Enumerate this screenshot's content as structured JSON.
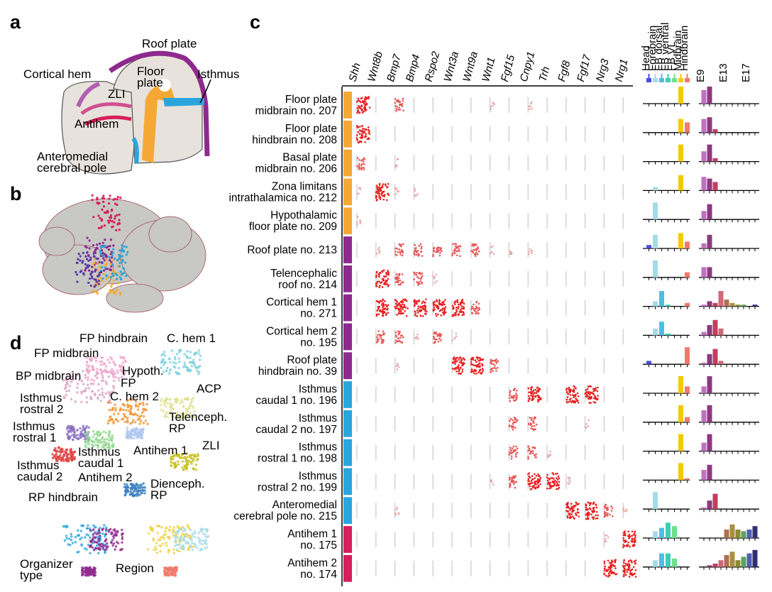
{
  "panel_labels": [
    "a",
    "b",
    "c",
    "d"
  ],
  "panel_a": {
    "labels": [
      [
        "Roof plate"
      ],
      [
        "Cortical hem"
      ],
      [
        "Floor",
        "plate"
      ],
      [
        "Isthmus"
      ],
      [
        "ZLI"
      ],
      [
        "Antihem"
      ],
      [
        "Anteromedial",
        "cerebral pole"
      ]
    ]
  },
  "panel_d": {
    "labels": [
      [
        "FP hindbrain"
      ],
      [
        "C. hem 1"
      ],
      [
        "FP midbrain"
      ],
      [
        "BP midbrain"
      ],
      [
        "Hypoth."
      ],
      [
        "FP"
      ],
      [
        "Isthmus",
        "rostral 2"
      ],
      [
        "C. hem 2"
      ],
      [
        "ACP"
      ],
      [
        "Telenceph.",
        "RP"
      ],
      [
        "Isthmus",
        "rostral 1"
      ],
      [
        "ZLI"
      ],
      [
        "Antihem 1"
      ],
      [
        "Isthmus",
        "caudal 1"
      ],
      [
        "Isthmus",
        "caudal 2"
      ],
      [
        "Antihem 2"
      ],
      [
        "Dienceph.",
        "RP"
      ],
      [
        "RP hindbrain"
      ],
      [
        "Organizer",
        "type"
      ],
      [
        "Region"
      ]
    ]
  },
  "panel_c": {
    "genes": [
      "Shh",
      "Wnt8b",
      "Bmp7",
      "Bmp4",
      "Rspo2",
      "Wnt3a",
      "Wnt9a",
      "Wnt1",
      "Fgf15",
      "Cnpy1",
      "Trh",
      "Fgf8",
      "Fgf17",
      "Nrg3",
      "Nrg1"
    ],
    "regions": [
      {
        "name": "Head",
        "color": "#4a4ae8"
      },
      {
        "name": "Forebrain",
        "color": "#a6dbe6"
      },
      {
        "name": "FB dorsal",
        "color": "#4cbfe0"
      },
      {
        "name": "FB ventral",
        "color": "#3ccfb4"
      },
      {
        "name": "FB VL",
        "color": "#6ee08a"
      },
      {
        "name": "Midbrain",
        "color": "#f5c800"
      },
      {
        "name": "Hindbrain",
        "color": "#f07a6a"
      }
    ],
    "ages": [
      "E9",
      null,
      null,
      null,
      "E13",
      null,
      null,
      null,
      "E17",
      null
    ],
    "age_colors": [
      "#c070c0",
      "#8b3a80",
      "#c04060",
      "#d06878",
      "#b07050",
      "#a89040",
      "#8a8a30",
      "#60a060",
      "#5060b0",
      "#303078"
    ],
    "rows": [
      {
        "label": [
          "Floor plate",
          "midbrain no. 207"
        ],
        "group_color": "#f5a833",
        "expression": [
          3,
          0,
          2,
          0,
          0,
          0,
          0,
          1,
          0,
          1,
          0,
          0,
          0,
          0,
          0
        ],
        "region": [
          0,
          0,
          0,
          0,
          0,
          1,
          0
        ],
        "age": [
          0.8,
          1,
          0,
          0,
          0,
          0,
          0,
          0,
          0,
          0
        ]
      },
      {
        "label": [
          "Floor plate",
          "hindbrain no. 208"
        ],
        "group_color": "#f5a833",
        "expression": [
          3,
          0,
          0,
          0,
          0,
          0,
          0,
          0,
          0,
          0,
          0,
          0,
          0,
          0,
          0
        ],
        "region": [
          0,
          0,
          0,
          0,
          0,
          0.8,
          0.6
        ],
        "age": [
          0.8,
          0.9,
          0.2,
          0,
          0,
          0,
          0,
          0,
          0,
          0
        ]
      },
      {
        "label": [
          "Basal plate",
          "midbrain no. 206"
        ],
        "group_color": "#f5a833",
        "expression": [
          2,
          0,
          1,
          0,
          0,
          0,
          0,
          0,
          0,
          0,
          0,
          0,
          0,
          0,
          0
        ],
        "region": [
          0,
          0,
          0,
          0,
          0,
          1,
          0
        ],
        "age": [
          0.6,
          1,
          0.2,
          0,
          0,
          0,
          0,
          0,
          0,
          0
        ]
      },
      {
        "label": [
          "Zona limitans",
          "intrathalamica no. 212"
        ],
        "group_color": "#f5a833",
        "expression": [
          1,
          3,
          1,
          1,
          0,
          0,
          0,
          0,
          0,
          0,
          0,
          0,
          0,
          0,
          0
        ],
        "region": [
          0,
          0.2,
          0,
          0,
          0,
          0.9,
          0
        ],
        "age": [
          0.8,
          0.7,
          0.5,
          0,
          0,
          0,
          0,
          0,
          0,
          0
        ]
      },
      {
        "label": [
          "Hypothalamic",
          "floor plate no. 209"
        ],
        "group_color": "#f5a833",
        "expression": [
          1,
          0,
          0,
          0,
          0,
          0,
          0,
          0,
          0,
          0,
          0,
          0,
          0,
          0,
          0
        ],
        "region": [
          0,
          1,
          0,
          0,
          0,
          0,
          0
        ],
        "age": [
          0.5,
          0.9,
          0,
          0,
          0,
          0,
          0,
          0,
          0,
          0
        ]
      },
      {
        "label": [
          "Roof plate no. 213"
        ],
        "group_color": "#8e2a8e",
        "expression": [
          0,
          1,
          2,
          2,
          2,
          2,
          2,
          1,
          1,
          1,
          0,
          0,
          0,
          0,
          0
        ],
        "region": [
          0.2,
          0.8,
          0,
          0,
          0,
          0.9,
          0.4
        ],
        "age": [
          0.3,
          0.8,
          0,
          0,
          0,
          0,
          0,
          0,
          0,
          0
        ]
      },
      {
        "label": [
          "Telencephalic",
          "roof no. 214"
        ],
        "group_color": "#8e2a8e",
        "expression": [
          0,
          3,
          2,
          2,
          1,
          0,
          0,
          0,
          0,
          0,
          0,
          0,
          0,
          0,
          0
        ],
        "region": [
          0,
          1,
          0,
          0,
          0,
          0,
          0.3
        ],
        "age": [
          0.6,
          0.6,
          0,
          0,
          0,
          0,
          0,
          0,
          0,
          0
        ]
      },
      {
        "label": [
          "Cortical hem 1",
          "no. 271"
        ],
        "group_color": "#8e2a8e",
        "expression": [
          0,
          3,
          3,
          3,
          3,
          3,
          2,
          0,
          0,
          0,
          0,
          0,
          0,
          0,
          0
        ],
        "region": [
          0,
          0.3,
          0.9,
          0.1,
          0,
          0,
          0.2
        ],
        "age": [
          0.1,
          0.3,
          0.2,
          0.9,
          0.4,
          0.2,
          0.1,
          0.1,
          0,
          0.1
        ]
      },
      {
        "label": [
          "Cortical hem 2",
          "no. 195"
        ],
        "group_color": "#8e2a8e",
        "expression": [
          0,
          2,
          2,
          1,
          2,
          1,
          0,
          0,
          0,
          0,
          0,
          0,
          0,
          0,
          0
        ],
        "region": [
          0,
          0.4,
          0.8,
          0.1,
          0,
          0,
          0
        ],
        "age": [
          0.2,
          0.6,
          0.9,
          0.4,
          0,
          0,
          0,
          0,
          0,
          0
        ]
      },
      {
        "label": [
          "Roof plate",
          "hindbrain no. 39"
        ],
        "group_color": "#8e2a8e",
        "expression": [
          0,
          0,
          1,
          0,
          0,
          3,
          3,
          2,
          0,
          0,
          0,
          0,
          0,
          0,
          0
        ],
        "region": [
          0.2,
          0,
          0,
          0,
          0,
          0,
          1
        ],
        "age": [
          0.1,
          0.6,
          0.9,
          0.2,
          0,
          0,
          0,
          0,
          0,
          0
        ]
      },
      {
        "label": [
          "Isthmus",
          "caudal 1 no. 196"
        ],
        "group_color": "#2aa6de",
        "expression": [
          0,
          0,
          0,
          0,
          0,
          0,
          0,
          0,
          2,
          3,
          0,
          3,
          3,
          0,
          0
        ],
        "region": [
          0,
          0,
          0,
          0,
          0,
          1,
          0.4
        ],
        "age": [
          0.4,
          1,
          0,
          0,
          0,
          0,
          0,
          0,
          0,
          0
        ]
      },
      {
        "label": [
          "Isthmus",
          "caudal 2 no. 197"
        ],
        "group_color": "#2aa6de",
        "expression": [
          0,
          0,
          0,
          0,
          0,
          0,
          0,
          0,
          2,
          2,
          0,
          0,
          1,
          0,
          0
        ],
        "region": [
          0,
          0,
          0,
          0,
          0,
          1,
          0.3
        ],
        "age": [
          0.7,
          1,
          0,
          0,
          0,
          0,
          0,
          0,
          0,
          0
        ]
      },
      {
        "label": [
          "Isthmus",
          "rostral 1 no. 198"
        ],
        "group_color": "#2aa6de",
        "expression": [
          0,
          0,
          0,
          0,
          0,
          0,
          0,
          0,
          2,
          2,
          1,
          0,
          0,
          0,
          0
        ],
        "region": [
          0,
          0,
          0,
          0,
          0,
          1,
          0
        ],
        "age": [
          0.5,
          1,
          0,
          0,
          0,
          0,
          0,
          0,
          0,
          0
        ]
      },
      {
        "label": [
          "Isthmus",
          "rostral 2 no. 199"
        ],
        "group_color": "#2aa6de",
        "expression": [
          0,
          0,
          0,
          0,
          0,
          0,
          0,
          1,
          2,
          3,
          3,
          1,
          0,
          0,
          0
        ],
        "region": [
          0,
          0,
          0,
          0,
          0,
          1,
          0.1
        ],
        "age": [
          0.6,
          0.9,
          0,
          0,
          0,
          0,
          0,
          0,
          0,
          0
        ]
      },
      {
        "label": [
          "Anteromedial",
          "cerebral pole no. 215"
        ],
        "group_color": "#2aa6de",
        "expression": [
          0,
          0,
          1,
          0,
          0,
          0,
          0,
          0,
          0,
          0,
          0,
          3,
          3,
          2,
          1
        ],
        "region": [
          0,
          1,
          0,
          0,
          0,
          0,
          0
        ],
        "age": [
          0.1,
          0.5,
          0.9,
          0,
          0,
          0,
          0,
          0,
          0,
          0
        ]
      },
      {
        "label": [
          "Antihem 1",
          "no. 175"
        ],
        "group_color": "#d81e5b",
        "expression": [
          0,
          0,
          0,
          0,
          0,
          0,
          0,
          0,
          0,
          0,
          0,
          0,
          0,
          1,
          3
        ],
        "region": [
          0,
          0.4,
          0.6,
          0.9,
          0.7,
          0,
          0
        ],
        "age": [
          0,
          0,
          0,
          0,
          0.5,
          0.8,
          0.5,
          0.4,
          0.5,
          0.7
        ]
      },
      {
        "label": [
          "Antihem 2",
          "no. 174"
        ],
        "group_color": "#d81e5b",
        "expression": [
          0,
          0,
          0,
          0,
          0,
          0,
          0,
          0,
          0,
          0,
          0,
          0,
          0,
          3,
          3
        ],
        "region": [
          0,
          0.4,
          0.8,
          0.8,
          0.5,
          0,
          0
        ],
        "age": [
          0,
          0.1,
          0.2,
          0.4,
          0.7,
          0.9,
          0.4,
          0.6,
          0.8,
          1
        ]
      }
    ]
  }
}
